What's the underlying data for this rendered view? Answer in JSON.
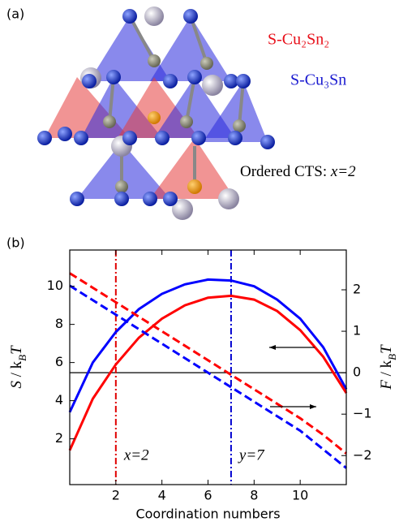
{
  "structure": {
    "label": "(a)",
    "legend": [
      {
        "text": "S-Cu₂Sn₂",
        "color": "#e8101a"
      },
      {
        "text": "S-Cu₃Sn",
        "color": "#1a1ad0"
      }
    ],
    "caption": [
      "Ordered CTS: ",
      "x=2"
    ]
  },
  "chart_data": {
    "type": "line",
    "panel_label": "(b)",
    "xlabel": "Coordination numbers",
    "ylabel": [
      "S",
      " / k",
      "B",
      "T"
    ],
    "y2label": [
      "F",
      " / k",
      "B",
      "T"
    ],
    "x": [
      0,
      1,
      2,
      3,
      4,
      5,
      6,
      7,
      8,
      9,
      10,
      11,
      12
    ],
    "series": [
      {
        "color": "#0000ff",
        "style": "solid",
        "values": [
          3.4,
          6.0,
          7.6,
          8.8,
          9.6,
          10.1,
          10.35,
          10.3,
          10.0,
          9.3,
          8.3,
          6.8,
          4.6
        ]
      },
      {
        "color": "#ff0000",
        "style": "solid",
        "values": [
          1.4,
          4.1,
          5.9,
          7.3,
          8.3,
          9.0,
          9.4,
          9.5,
          9.3,
          8.7,
          7.7,
          6.3,
          4.4
        ]
      },
      {
        "color": "#ff0000",
        "style": "dashed",
        "axis": "y2",
        "values": [
          2.4,
          2.05,
          1.7,
          1.35,
          1.0,
          0.65,
          0.3,
          -0.05,
          -0.4,
          -0.75,
          -1.1,
          -1.5,
          -1.95
        ]
      },
      {
        "color": "#0000ff",
        "style": "dashed",
        "axis": "y2",
        "values": [
          2.1,
          1.75,
          1.4,
          1.05,
          0.7,
          0.35,
          0.0,
          -0.35,
          -0.7,
          -1.05,
          -1.4,
          -1.85,
          -2.3
        ]
      }
    ],
    "xlim": [
      0,
      12
    ],
    "xticks": [
      2,
      4,
      6,
      8,
      10
    ],
    "ylim": [
      -0.4,
      11.9
    ],
    "yticks": [
      2,
      4,
      6,
      8,
      10
    ],
    "y2lim": [
      -2.7,
      2.96
    ],
    "y2ticks": [
      2,
      1,
      0,
      {
        "value": -1,
        "label": "−1"
      },
      {
        "value": -2,
        "label": "−2"
      }
    ],
    "vlines": [
      {
        "x": 2,
        "color": "#e00000",
        "label": "x=2"
      },
      {
        "x": 7,
        "color": "#0000d0",
        "label": "y=7"
      }
    ],
    "hline_y2": 0
  }
}
